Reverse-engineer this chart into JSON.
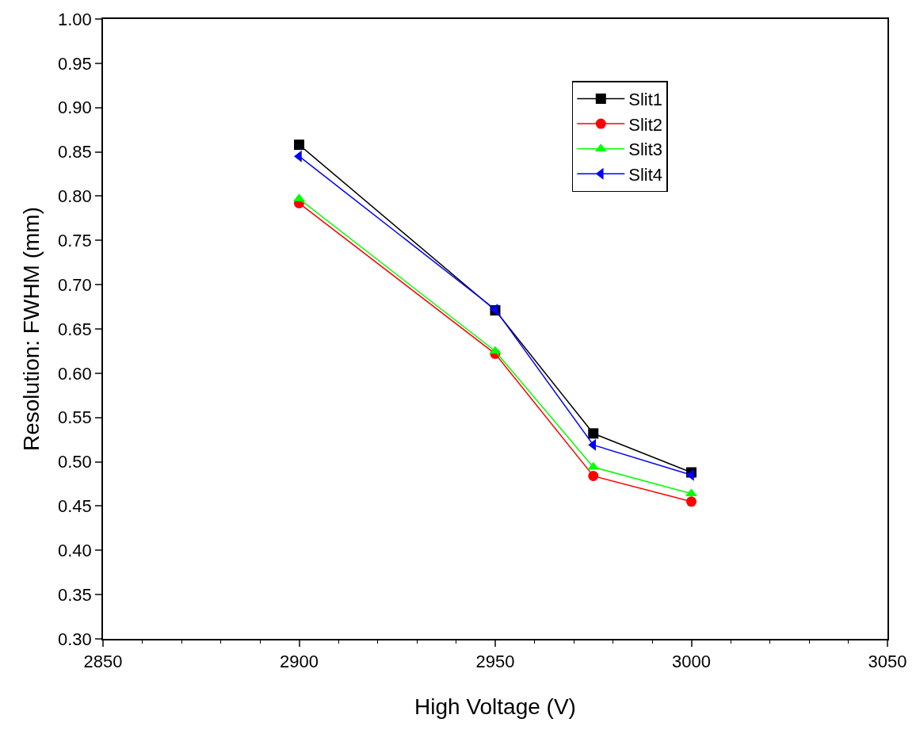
{
  "chart_data": {
    "type": "line",
    "xlabel": "High Voltage (V)",
    "ylabel": "Resolution: FWHM (mm)",
    "x": [
      2900,
      2950,
      2975,
      3000
    ],
    "series": [
      {
        "name": "Slit1",
        "color": "#000000",
        "marker": "square",
        "values": [
          0.858,
          0.671,
          0.532,
          0.488
        ]
      },
      {
        "name": "Slit2",
        "color": "#ff0000",
        "marker": "circle",
        "values": [
          0.792,
          0.622,
          0.484,
          0.455
        ]
      },
      {
        "name": "Slit3",
        "color": "#00ff00",
        "marker": "triangle",
        "values": [
          0.797,
          0.625,
          0.494,
          0.464
        ]
      },
      {
        "name": "Slit4",
        "color": "#0000ff",
        "marker": "triangle-left",
        "values": [
          0.845,
          0.672,
          0.519,
          0.485
        ]
      }
    ],
    "xlim": [
      2850,
      3050
    ],
    "xticks": [
      2850,
      2900,
      2950,
      3000,
      3050
    ],
    "ylim": [
      0.3,
      1.0
    ],
    "yticks": [
      {
        "value": 0.3,
        "label": "0.30"
      },
      0.35,
      {
        "value": 0.4,
        "label": "0.40"
      },
      0.45,
      {
        "value": 0.5,
        "label": "0.50"
      },
      0.55,
      {
        "value": 0.6,
        "label": "0.60"
      },
      0.65,
      {
        "value": 0.7,
        "label": "0.70"
      },
      0.75,
      {
        "value": 0.8,
        "label": "0.80"
      },
      0.85,
      {
        "value": 0.9,
        "label": "0.90"
      },
      0.95,
      {
        "value": 1.0,
        "label": "1.00"
      }
    ],
    "legend": "top right",
    "line_style": "solid"
  }
}
